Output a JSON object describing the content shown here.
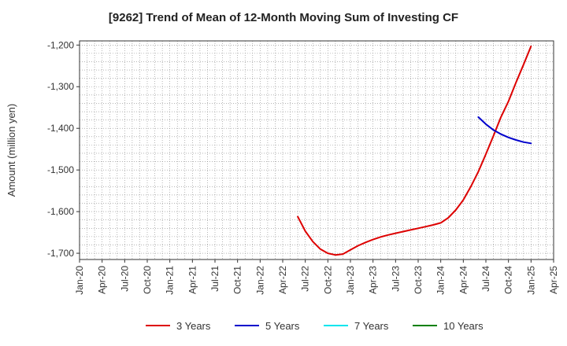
{
  "chart_data": {
    "type": "line",
    "title": "[9262]  Trend of Mean of 12-Month Moving Sum of Investing CF",
    "ylabel": "Amount (million yen)",
    "xlabel": "",
    "ylim": [
      -1715,
      -1190
    ],
    "yticks": [
      -1200,
      -1300,
      -1400,
      -1500,
      -1600,
      -1700
    ],
    "ytick_labels": [
      "-1,200",
      "-1,300",
      "-1,400",
      "-1,500",
      "-1,600",
      "-1,700"
    ],
    "x_range": [
      "2020-01",
      "2025-04"
    ],
    "xtick_labels": [
      "Jan-20",
      "Apr-20",
      "Jul-20",
      "Oct-20",
      "Jan-21",
      "Apr-21",
      "Jul-21",
      "Oct-21",
      "Jan-22",
      "Apr-22",
      "Jul-22",
      "Oct-22",
      "Jan-23",
      "Apr-23",
      "Jul-23",
      "Oct-23",
      "Jan-24",
      "Apr-24",
      "Jul-24",
      "Oct-24",
      "Jan-25",
      "Apr-25"
    ],
    "grid": true,
    "legend_position": "bottom",
    "series": [
      {
        "name": "3 Years",
        "color": "#dd0000",
        "x": [
          "2022-06",
          "2022-07",
          "2022-08",
          "2022-09",
          "2022-10",
          "2022-11",
          "2022-12",
          "2023-01",
          "2023-02",
          "2023-03",
          "2023-04",
          "2023-05",
          "2023-06",
          "2023-07",
          "2023-08",
          "2023-09",
          "2023-10",
          "2023-11",
          "2023-12",
          "2024-01",
          "2024-02",
          "2024-03",
          "2024-04",
          "2024-05",
          "2024-06",
          "2024-07",
          "2024-08",
          "2024-09",
          "2024-10",
          "2024-11",
          "2024-12",
          "2025-01"
        ],
        "values": [
          -1612,
          -1647,
          -1672,
          -1690,
          -1700,
          -1704,
          -1702,
          -1692,
          -1682,
          -1674,
          -1667,
          -1661,
          -1656,
          -1652,
          -1648,
          -1644,
          -1640,
          -1636,
          -1632,
          -1627,
          -1615,
          -1596,
          -1572,
          -1540,
          -1504,
          -1462,
          -1418,
          -1373,
          -1335,
          -1290,
          -1247,
          -1203
        ]
      },
      {
        "name": "5 Years",
        "color": "#0000cc",
        "x": [
          "2024-06",
          "2024-07",
          "2024-08",
          "2024-09",
          "2024-10",
          "2024-11",
          "2024-12",
          "2025-01"
        ],
        "values": [
          -1373,
          -1390,
          -1404,
          -1414,
          -1422,
          -1428,
          -1433,
          -1436
        ]
      },
      {
        "name": "7 Years",
        "color": "#00e5ee",
        "x": [],
        "values": []
      },
      {
        "name": "10 Years",
        "color": "#008000",
        "x": [],
        "values": []
      }
    ]
  }
}
